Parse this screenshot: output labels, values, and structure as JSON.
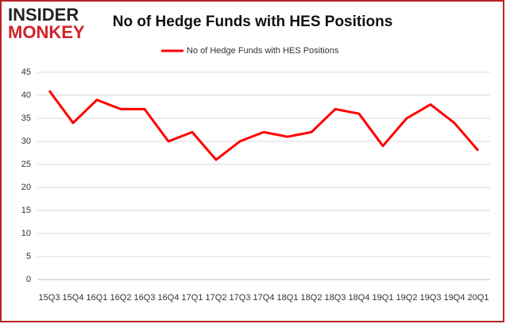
{
  "logo": {
    "line1": "INSIDER",
    "line2": "MONKEY"
  },
  "chart_data": {
    "type": "line",
    "title": "No of Hedge Funds with HES Positions",
    "categories": [
      "15Q3",
      "15Q4",
      "16Q1",
      "16Q2",
      "16Q3",
      "16Q4",
      "17Q1",
      "17Q2",
      "17Q3",
      "17Q4",
      "18Q1",
      "18Q2",
      "18Q3",
      "18Q4",
      "19Q1",
      "19Q2",
      "19Q3",
      "19Q4",
      "20Q1"
    ],
    "series": [
      {
        "name": "No of Hedge Funds with HES Positions",
        "color": "#ff0000",
        "values": [
          41,
          34,
          39,
          37,
          37,
          30,
          32,
          26,
          30,
          32,
          31,
          32,
          37,
          36,
          29,
          35,
          38,
          34,
          28
        ]
      }
    ],
    "ylim": [
      0,
      45
    ],
    "yticks": [
      0,
      5,
      10,
      15,
      20,
      25,
      30,
      35,
      40,
      45
    ],
    "grid": true,
    "legend": "top"
  }
}
